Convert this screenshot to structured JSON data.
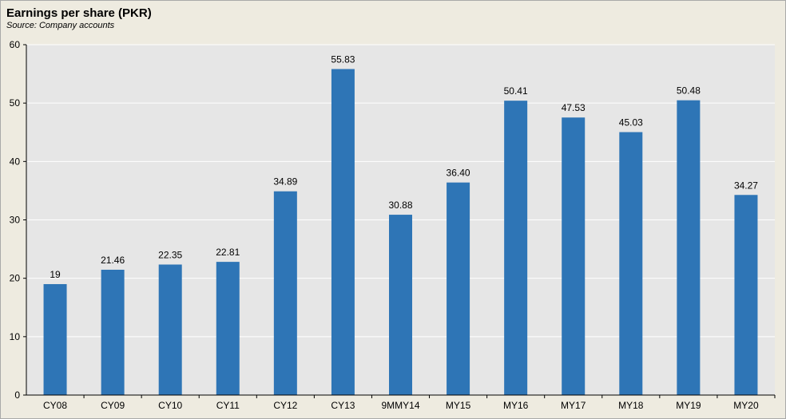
{
  "header": {
    "title": "Earnings per share (PKR)",
    "subtitle": "Source: Company accounts"
  },
  "colors": {
    "bar": "#2e75b6",
    "plot_background": "#e6e6e6",
    "gridline": "#ffffff",
    "page_background": "#eeebe0"
  },
  "chart_data": {
    "type": "bar",
    "title": "Earnings per share (PKR)",
    "subtitle": "Source: Company accounts",
    "categories": [
      "CY08",
      "CY09",
      "CY10",
      "CY11",
      "CY12",
      "CY13",
      "9MMY14",
      "MY15",
      "MY16",
      "MY17",
      "MY18",
      "MY19",
      "MY20"
    ],
    "values": [
      19,
      21.46,
      22.35,
      22.81,
      34.89,
      55.83,
      30.88,
      36.4,
      50.41,
      47.53,
      45.03,
      50.48,
      34.27
    ],
    "value_labels": [
      "19",
      "21.46",
      "22.35",
      "22.81",
      "34.89",
      "55.83",
      "30.88",
      "36.40",
      "50.41",
      "47.53",
      "45.03",
      "50.48",
      "34.27"
    ],
    "xlabel": "",
    "ylabel": "",
    "ylim": [
      0,
      60
    ],
    "yticks": [
      0,
      10,
      20,
      30,
      40,
      50,
      60
    ],
    "grid": true,
    "legend": "none"
  }
}
